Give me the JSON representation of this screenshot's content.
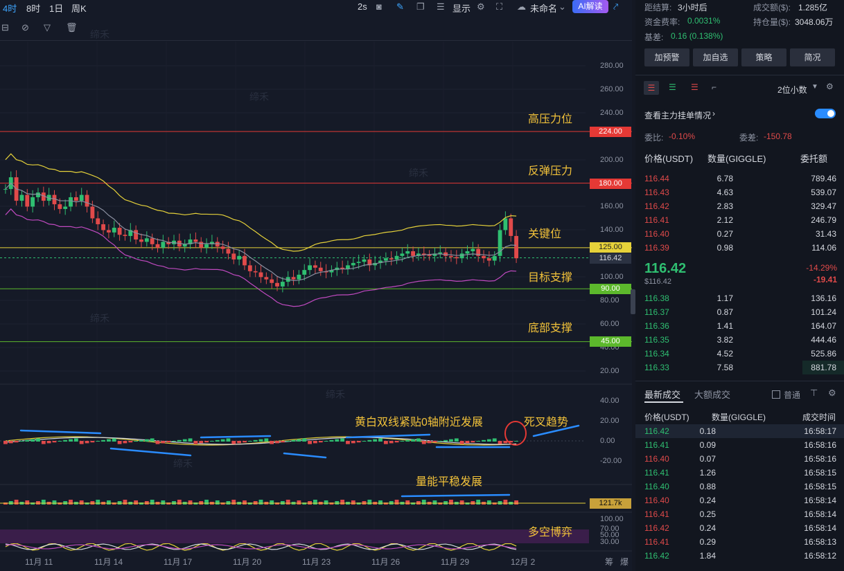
{
  "topbar": {
    "intervals": [
      "4时",
      "8时",
      "1日",
      "周K"
    ],
    "refresh": "2s",
    "display_label": "显示",
    "unnamed_label": "未命名",
    "ai_label": "AI解读"
  },
  "watermark": "缔禾",
  "annotations": {
    "high_pressure": "高压力位",
    "rebound_pressure": "反弹压力",
    "key_level": "关键位",
    "target_support": "目标支撑",
    "bottom_support": "底部支撑",
    "macd_note": "黄白双线紧贴0轴附近发展",
    "death_cross": "死叉趋势",
    "volume_note": "量能平稳发展",
    "bull_bear": "多空博弈"
  },
  "price_axis": {
    "ticks": [
      "280.00",
      "260.00",
      "240.00",
      "200.00",
      "160.00",
      "140.00",
      "100.00",
      "80.00",
      "60.00",
      "40.00",
      "20.00"
    ],
    "tags": {
      "level_224": "224.00",
      "level_180": "180.00",
      "level_125": "125.00",
      "current": "116.42",
      "level_90": "90.00",
      "level_45": "45.00"
    }
  },
  "macd_axis": {
    "ticks": [
      "40.00",
      "20.00",
      "0.00",
      "-20.00"
    ]
  },
  "volume_axis": {
    "tag": "121.7k"
  },
  "rsi_axis": {
    "ticks": [
      "100.00",
      "70.00",
      "50.00",
      "30.00"
    ]
  },
  "x_axis": {
    "ticks": [
      "11月 11",
      "11月 14",
      "11月 17",
      "11月 20",
      "11月 23",
      "11月 26",
      "11月 29",
      "12月 2"
    ],
    "right_labels": [
      "筹",
      "爆"
    ]
  },
  "colors": {
    "up": "#2fbf71",
    "down": "#e04a4a",
    "accent": "#f2c23a",
    "resistance": "#e53935",
    "support": "#4caf50"
  },
  "chart_data": {
    "type": "candlestick",
    "price_levels": [
      {
        "label": "高压力位",
        "value": 224
      },
      {
        "label": "反弹压力",
        "value": 180
      },
      {
        "label": "关键位",
        "value": 125
      },
      {
        "label": "目标支撑",
        "value": 90
      },
      {
        "label": "底部支撑",
        "value": 45
      }
    ],
    "current_price": 116.42,
    "ylim": [
      10,
      290
    ]
  },
  "info": {
    "settle_label": "距结算:",
    "settle_value": "3小时后",
    "turnover_label": "成交额($):",
    "turnover_value": "1.285亿",
    "funding_label": "资金费率:",
    "funding_value": "0.0031%",
    "oi_label": "持仓量($):",
    "oi_value": "3048.06万",
    "basis_label": "基差:",
    "basis_value": "0.16 (0.138%)"
  },
  "buttons": [
    "加预警",
    "加自选",
    "策略",
    "简况"
  ],
  "orderbook": {
    "decimals": "2位小数",
    "main_orders_label": "查看主力挂单情况",
    "ratio_label": "委比:",
    "ratio_value": "-0.10%",
    "diff_label": "委差:",
    "diff_value": "-150.78",
    "headers": [
      "价格(USDT)",
      "数量(GIGGLE)",
      "委托额"
    ],
    "asks": [
      [
        "116.44",
        "6.78",
        "789.46"
      ],
      [
        "116.43",
        "4.63",
        "539.07"
      ],
      [
        "116.42",
        "2.83",
        "329.47"
      ],
      [
        "116.41",
        "2.12",
        "246.79"
      ],
      [
        "116.40",
        "0.27",
        "31.43"
      ],
      [
        "116.39",
        "0.98",
        "114.06"
      ]
    ],
    "last_price": "116.42",
    "last_price_usd": "$116.42",
    "change_pct": "-14.29%",
    "change_abs": "-19.41",
    "bids": [
      [
        "116.38",
        "1.17",
        "136.16"
      ],
      [
        "116.37",
        "0.87",
        "101.24"
      ],
      [
        "116.36",
        "1.41",
        "164.07"
      ],
      [
        "116.35",
        "3.82",
        "444.46"
      ],
      [
        "116.34",
        "4.52",
        "525.86"
      ],
      [
        "116.33",
        "7.58",
        "881.78"
      ]
    ]
  },
  "trades": {
    "tab_latest": "最新成交",
    "tab_large": "大额成交",
    "normal_label": "普通",
    "headers": [
      "价格(USDT)",
      "数量(GIGGLE)",
      "成交时间"
    ],
    "rows": [
      [
        "116.42",
        "0.18",
        "16:58:17",
        "up"
      ],
      [
        "116.41",
        "0.09",
        "16:58:16",
        "up"
      ],
      [
        "116.40",
        "0.07",
        "16:58:16",
        "down"
      ],
      [
        "116.41",
        "1.26",
        "16:58:15",
        "up"
      ],
      [
        "116.40",
        "0.88",
        "16:58:15",
        "up"
      ],
      [
        "116.40",
        "0.24",
        "16:58:14",
        "down"
      ],
      [
        "116.41",
        "0.25",
        "16:58:14",
        "down"
      ],
      [
        "116.42",
        "0.24",
        "16:58:14",
        "down"
      ],
      [
        "116.41",
        "0.29",
        "16:58:13",
        "down"
      ],
      [
        "116.42",
        "1.84",
        "16:58:12",
        "up"
      ]
    ]
  }
}
